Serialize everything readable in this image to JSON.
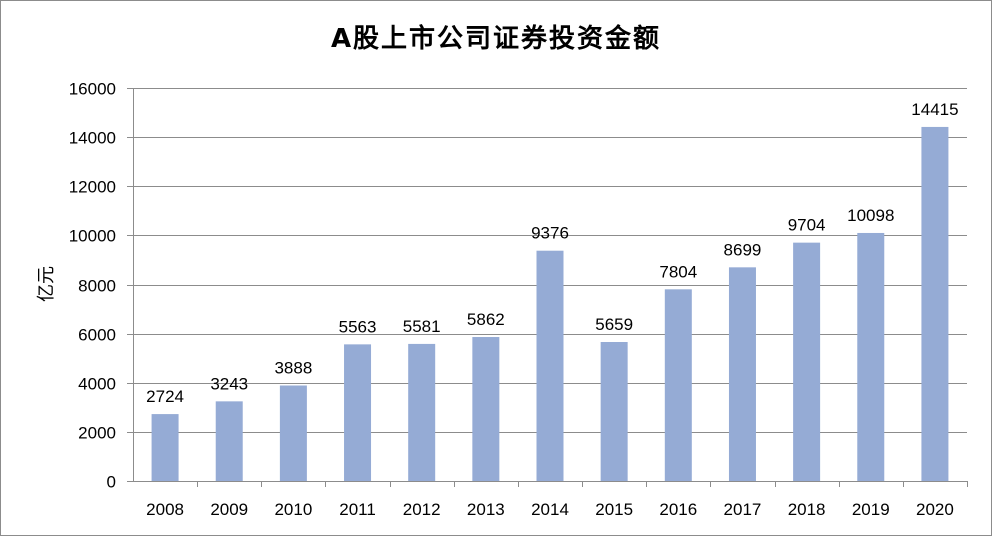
{
  "chart_data": {
    "type": "bar",
    "title": "A股上市公司证券投资金额",
    "ylabel": "亿元",
    "xlabel": "",
    "categories": [
      "2008",
      "2009",
      "2010",
      "2011",
      "2012",
      "2013",
      "2014",
      "2015",
      "2016",
      "2017",
      "2018",
      "2019",
      "2020"
    ],
    "values": [
      2724,
      3243,
      3888,
      5563,
      5581,
      5862,
      9376,
      5659,
      7804,
      8699,
      9704,
      10098,
      14415
    ],
    "ylim": [
      0,
      16000
    ],
    "yticks": [
      0,
      2000,
      4000,
      6000,
      8000,
      10000,
      12000,
      14000,
      16000
    ],
    "grid": true,
    "legend": "none",
    "data_labels": true,
    "bar_color": "#95abd5",
    "grid_color": "#8c8c8c"
  }
}
